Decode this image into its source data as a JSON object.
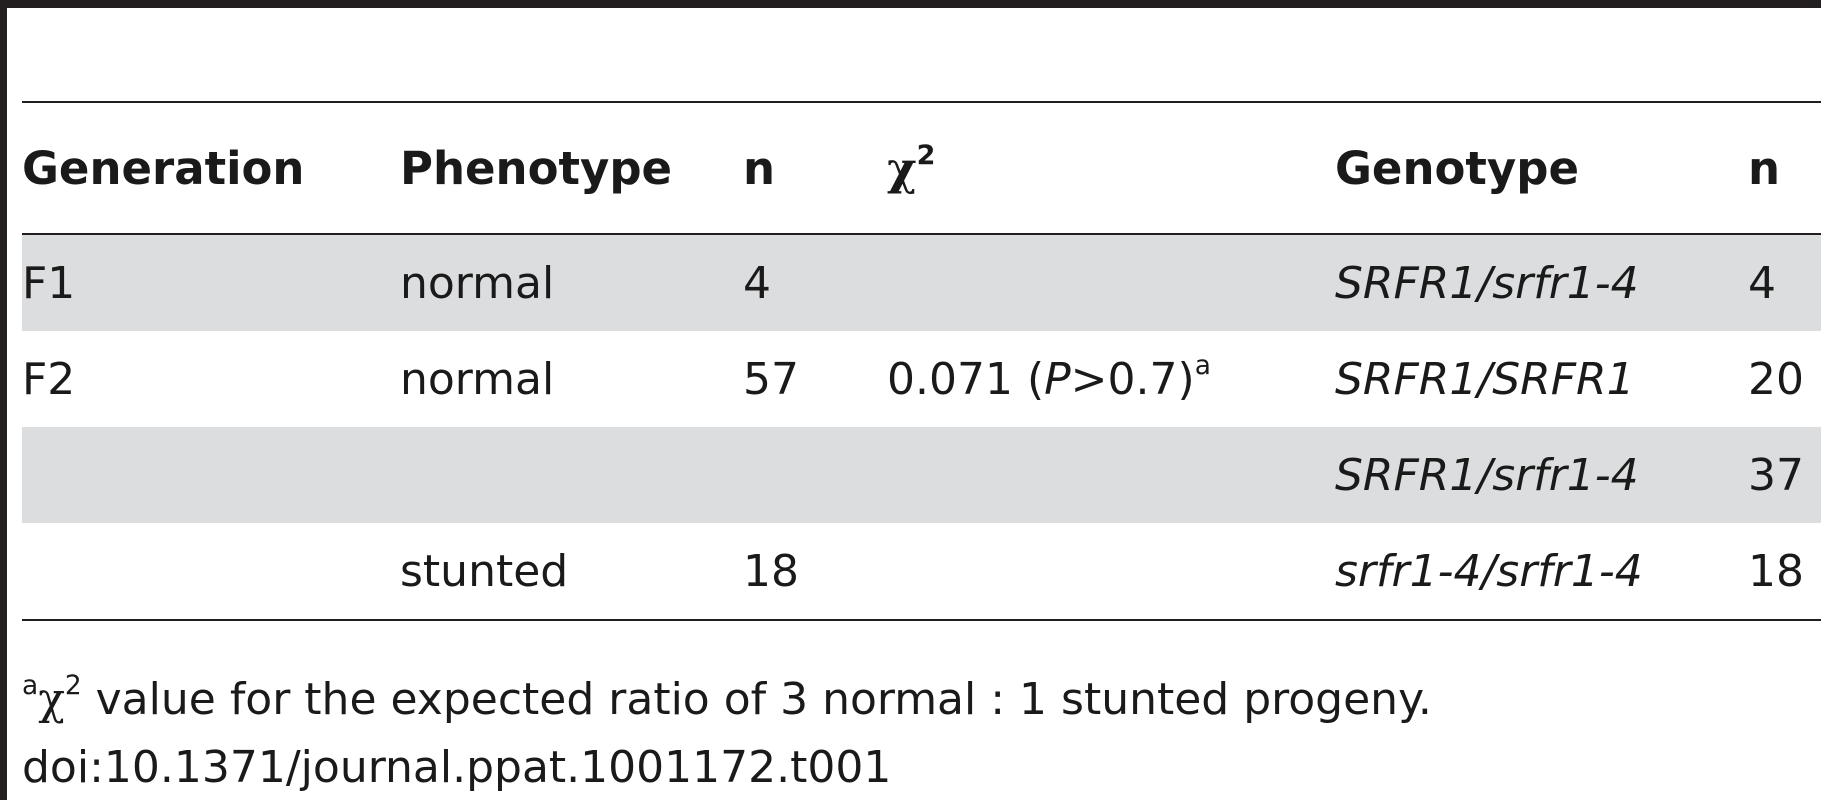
{
  "table": {
    "headers": {
      "generation": "Generation",
      "phenotype": "Phenotype",
      "n1": "n",
      "chi_symbol": "χ",
      "chi_sup": "2",
      "genotype": "Genotype",
      "n2": "n"
    },
    "rows": [
      {
        "generation": "F1",
        "phenotype": "normal",
        "n": "4",
        "chi_value": "",
        "chi_p": "",
        "chi_sup": "",
        "genotype": "SRFR1/srfr1-4",
        "n2": "4"
      },
      {
        "generation": "F2",
        "phenotype": "normal",
        "n": "57",
        "chi_value": "0.071 (",
        "chi_p_label": "P",
        "chi_p": ">0.7)",
        "chi_sup": "a",
        "genotype": "SRFR1/SRFR1",
        "n2": "20"
      },
      {
        "generation": "",
        "phenotype": "",
        "n": "",
        "chi_value": "",
        "chi_p": "",
        "chi_sup": "",
        "genotype": "SRFR1/srfr1-4",
        "n2": "37"
      },
      {
        "generation": "",
        "phenotype": "stunted",
        "n": "18",
        "chi_value": "",
        "chi_p": "",
        "chi_sup": "",
        "genotype": "srfr1-4/srfr1-4",
        "n2": "18"
      }
    ]
  },
  "footnote": {
    "marker": "a",
    "chi_symbol": "χ",
    "chi_sup": "2",
    "text": " value for the expected ratio of 3 normal : 1 stunted progeny."
  },
  "doi": "doi:10.1371/journal.ppat.1001172.t001"
}
